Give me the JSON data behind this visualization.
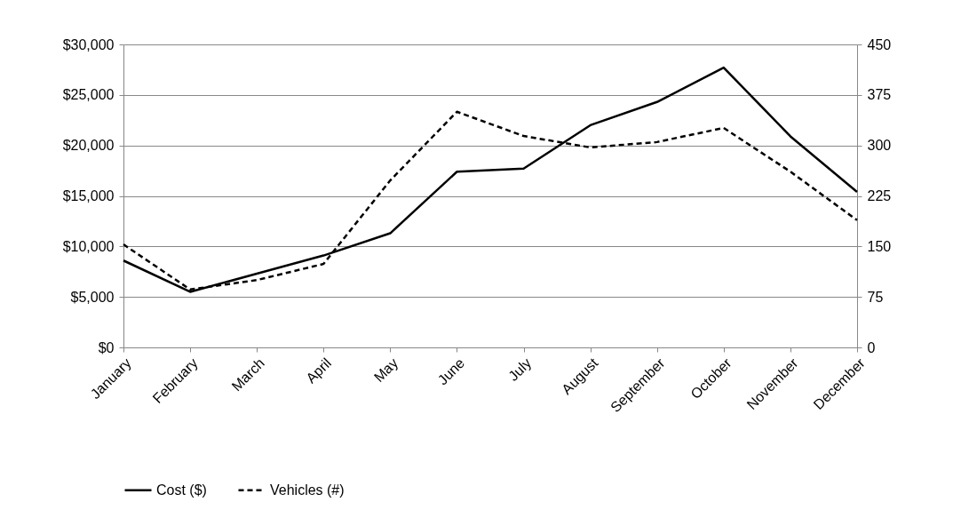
{
  "chart_data": {
    "type": "line",
    "categories": [
      "January",
      "February",
      "March",
      "April",
      "May",
      "June",
      "July",
      "August",
      "September",
      "October",
      "November",
      "December"
    ],
    "series": [
      {
        "name": "Cost ($)",
        "color": "#000000",
        "line_style": "solid",
        "values": [
          8600,
          5500,
          7300,
          9100,
          11300,
          17400,
          17700,
          22000,
          24300,
          27700,
          20900,
          15400
        ]
      },
      {
        "name": "Vehicles (#)",
        "color": "#000000",
        "line_style": "dashed",
        "axis": "y2",
        "values": [
          153,
          86,
          100,
          124,
          248,
          350,
          314,
          297,
          305,
          326,
          261,
          189
        ]
      }
    ],
    "ylim": [
      0,
      30000
    ],
    "yticks": [
      {
        "value": 0,
        "label": "$0"
      },
      {
        "value": 5000,
        "label": "$5,000"
      },
      {
        "value": 10000,
        "label": "$10,000"
      },
      {
        "value": 15000,
        "label": "$15,000"
      },
      {
        "value": 20000,
        "label": "$20,000"
      },
      {
        "value": 25000,
        "label": "$25,000"
      },
      {
        "value": 30000,
        "label": "$30,000"
      }
    ],
    "y2lim": [
      0,
      450
    ],
    "y2ticks": [
      0,
      75,
      150,
      225,
      300,
      375,
      450
    ],
    "grid": "y",
    "legend": "bottom"
  }
}
